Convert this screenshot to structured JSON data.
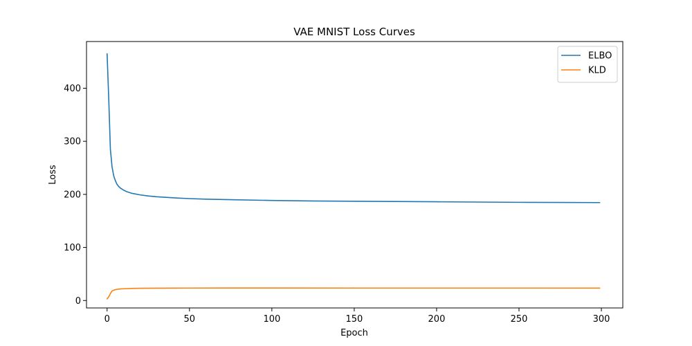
{
  "chart_data": {
    "type": "line",
    "title": "VAE MNIST Loss Curves",
    "xlabel": "Epoch",
    "ylabel": "Loss",
    "xlim": [
      -12.5,
      313
    ],
    "ylim": [
      -14,
      488
    ],
    "xticks": [
      0,
      50,
      100,
      150,
      200,
      250,
      300
    ],
    "yticks": [
      0,
      100,
      200,
      300,
      400
    ],
    "grid": false,
    "legend_position": "top-right",
    "series": [
      {
        "name": "ELBO",
        "color": "#1f77b4",
        "points": [
          [
            0,
            465
          ],
          [
            1,
            380
          ],
          [
            2,
            285
          ],
          [
            3,
            252
          ],
          [
            4,
            235
          ],
          [
            5,
            226
          ],
          [
            6,
            219
          ],
          [
            7,
            215
          ],
          [
            8,
            212
          ],
          [
            9,
            210
          ],
          [
            10,
            208
          ],
          [
            12,
            205
          ],
          [
            15,
            202
          ],
          [
            20,
            199
          ],
          [
            25,
            197
          ],
          [
            30,
            195.5
          ],
          [
            40,
            193.5
          ],
          [
            50,
            192
          ],
          [
            60,
            191
          ],
          [
            75,
            190
          ],
          [
            100,
            188.5
          ],
          [
            125,
            187.5
          ],
          [
            150,
            187
          ],
          [
            175,
            186.5
          ],
          [
            200,
            186
          ],
          [
            225,
            185.5
          ],
          [
            250,
            185
          ],
          [
            275,
            184.8
          ],
          [
            299,
            184.5
          ]
        ]
      },
      {
        "name": "KLD",
        "color": "#ff7f0e",
        "points": [
          [
            0,
            3
          ],
          [
            1,
            7
          ],
          [
            2,
            13
          ],
          [
            3,
            18
          ],
          [
            4,
            19.5
          ],
          [
            5,
            20.5
          ],
          [
            7,
            21.5
          ],
          [
            10,
            22.2
          ],
          [
            15,
            22.8
          ],
          [
            20,
            23.1
          ],
          [
            30,
            23.3
          ],
          [
            50,
            23.5
          ],
          [
            75,
            23.6
          ],
          [
            100,
            23.6
          ],
          [
            150,
            23.5
          ],
          [
            200,
            23.5
          ],
          [
            250,
            23.5
          ],
          [
            299,
            23.4
          ]
        ]
      }
    ]
  }
}
